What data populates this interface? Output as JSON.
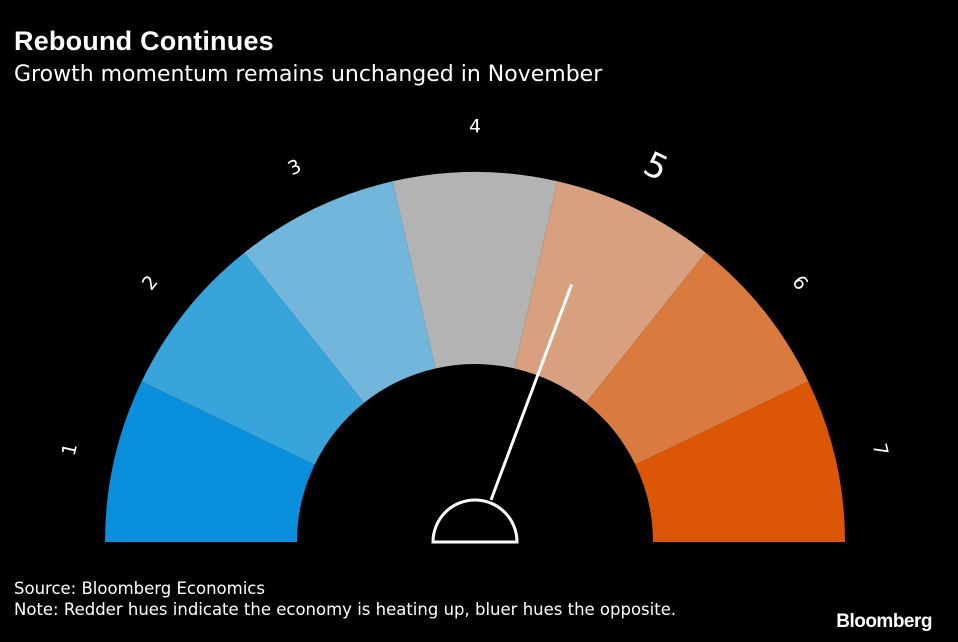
{
  "header": {
    "title": "Rebound Continues",
    "subtitle": "Growth momentum remains unchanged in November"
  },
  "footer": {
    "source": "Source: Bloomberg Economics",
    "note": "Note: Redder hues indicate the economy is heating up, bluer hues the opposite.",
    "logo": "Bloomberg"
  },
  "chart_data": {
    "type": "gauge",
    "scale": {
      "min": 1,
      "max": 7
    },
    "segments": [
      {
        "label": "1",
        "color": "#0a8fdc"
      },
      {
        "label": "2",
        "color": "#37a4db"
      },
      {
        "label": "3",
        "color": "#73b6db"
      },
      {
        "label": "4",
        "color": "#b3b3b3"
      },
      {
        "label": "5",
        "color": "#d8a07f"
      },
      {
        "label": "6",
        "color": "#d97b3f"
      },
      {
        "label": "7",
        "color": "#dc5607"
      }
    ],
    "highlighted": "5",
    "needle_value": 4.8
  }
}
